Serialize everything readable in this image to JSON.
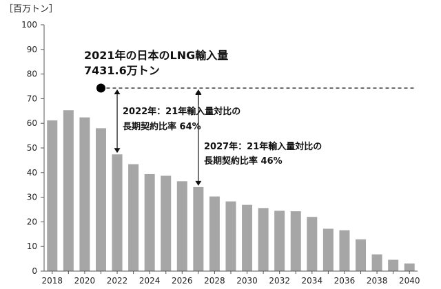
{
  "chart_data": {
    "type": "bar",
    "unit_label": "［百万トン］",
    "years": [
      2018,
      2019,
      2020,
      2021,
      2022,
      2023,
      2024,
      2025,
      2026,
      2027,
      2028,
      2029,
      2030,
      2031,
      2032,
      2033,
      2034,
      2035,
      2036,
      2037,
      2038,
      2039,
      2040
    ],
    "values": [
      {
        "year": 2018,
        "value": 61.2
      },
      {
        "year": 2019,
        "value": 65.3
      },
      {
        "year": 2020,
        "value": 62.4
      },
      {
        "year": 2021,
        "value": 58.0
      },
      {
        "year": 2022,
        "value": 47.4
      },
      {
        "year": 2023,
        "value": 43.4
      },
      {
        "year": 2024,
        "value": 39.4
      },
      {
        "year": 2025,
        "value": 38.7
      },
      {
        "year": 2026,
        "value": 36.5
      },
      {
        "year": 2027,
        "value": 34.1
      },
      {
        "year": 2028,
        "value": 30.3
      },
      {
        "year": 2029,
        "value": 28.3
      },
      {
        "year": 2030,
        "value": 26.9
      },
      {
        "year": 2031,
        "value": 25.6
      },
      {
        "year": 2032,
        "value": 24.5
      },
      {
        "year": 2033,
        "value": 24.3
      },
      {
        "year": 2034,
        "value": 22.0
      },
      {
        "year": 2035,
        "value": 17.2
      },
      {
        "year": 2036,
        "value": 16.6
      },
      {
        "year": 2037,
        "value": 12.9
      },
      {
        "year": 2038,
        "value": 6.8
      },
      {
        "year": 2039,
        "value": 4.6
      },
      {
        "year": 2040,
        "value": 3.1
      }
    ],
    "x_tick_labels": [
      "2018",
      "2020",
      "2022",
      "2024",
      "2026",
      "2028",
      "2030",
      "2032",
      "2034",
      "2036",
      "2038",
      "2040"
    ],
    "y_ticks": [
      "0",
      "10",
      "20",
      "30",
      "40",
      "50",
      "60",
      "70",
      "80",
      "90",
      "100"
    ],
    "ylim": [
      0,
      100
    ],
    "grid": false,
    "reference": {
      "year": 2021,
      "value": 74.3,
      "style": "dashed"
    },
    "arrows": [
      {
        "year": 2022,
        "from": 74.3,
        "to": 47.4
      },
      {
        "year": 2027,
        "from": 74.3,
        "to": 34.1
      }
    ],
    "annotations": {
      "ref_title": "2021年の日本のLNG輸入量",
      "ref_value": "7431.6万トン",
      "a2022_line1": "2022年：21年輸入量対比の",
      "a2022_line2": "長期契約比率 64%",
      "a2027_line1": "2027年：21年輸入量対比の",
      "a2027_line2": "長期契約比率 46%"
    }
  }
}
